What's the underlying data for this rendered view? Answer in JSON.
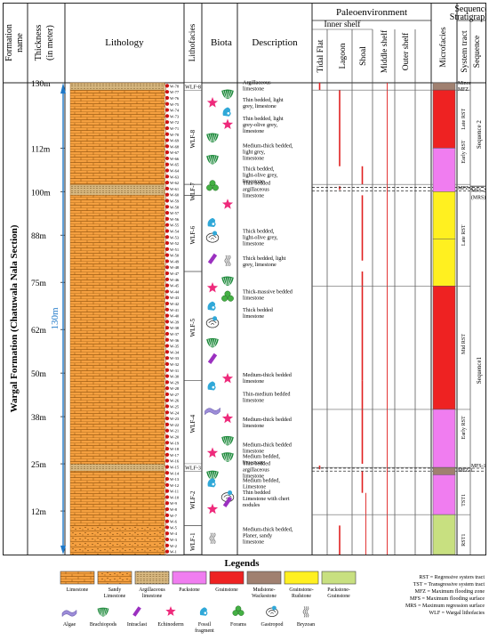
{
  "headers": {
    "formation": "Formation name",
    "thickness": "Thickness (in meter)",
    "lithology": "Lithology",
    "lithofacies": "Lithofacies",
    "biota": "Biota",
    "description": "Description",
    "paleoenvironment": "Paleoenvironment",
    "inner_shelf": "Inner shelf",
    "tidal_flat": "Tidal Flat",
    "lagoon": "Lagoon",
    "shoal": "Shoal",
    "middle_shelf": "Middle shelf",
    "outer_shelf": "Outer shelf",
    "microfacies": "Microfacies",
    "sequence_stratigraphy": "Sequence Stratigraphy",
    "system_tract": "System tract",
    "sequence": "Sequence"
  },
  "formation_name": "Wargal Formation (Chatuwala Nala Section)",
  "total_thickness": "130m",
  "thickness_scale": [
    {
      "label": "130m",
      "value": 130
    },
    {
      "label": "112m",
      "value": 112
    },
    {
      "label": "100m",
      "value": 100
    },
    {
      "label": "88m",
      "value": 88
    },
    {
      "label": "75m",
      "value": 75
    },
    {
      "label": "62m",
      "value": 62
    },
    {
      "label": "50m",
      "value": 50
    },
    {
      "label": "38m",
      "value": 38
    },
    {
      "label": "25m",
      "value": 25
    },
    {
      "label": "12m",
      "value": 12
    }
  ],
  "samples": [
    "W-78",
    "W-77",
    "W-76",
    "W-75",
    "W-74",
    "W-73",
    "W-72",
    "W-71",
    "W-70",
    "W-69",
    "W-68",
    "W-67",
    "W-66",
    "W-65",
    "W-64",
    "W-63",
    "W-62",
    "W-61",
    "W-60",
    "W-59",
    "W-58",
    "W-57",
    "W-56",
    "W-55",
    "W-54",
    "W-53",
    "W-52",
    "W-51",
    "W-50",
    "W-49",
    "W-48",
    "W-47",
    "W-46",
    "W-45",
    "W-44",
    "W-43",
    "W-42",
    "W-41",
    "W-40",
    "W-39",
    "W-38",
    "W-37",
    "W-36",
    "W-35",
    "W-34",
    "W-33",
    "W-32",
    "W-31",
    "W-30",
    "W-29",
    "W-28",
    "W-27",
    "W-26",
    "W-25",
    "W-24",
    "W-23",
    "W-22",
    "W-21",
    "W-20",
    "W-19",
    "W-18",
    "W-17",
    "W-16",
    "W-15",
    "W-14",
    "W-13",
    "W-12",
    "W-11",
    "W-10",
    "W-9",
    "W-8",
    "W-7",
    "W-6",
    "W-5",
    "W-4",
    "W-3",
    "W-2",
    "W-1"
  ],
  "lithology_units": [
    {
      "from": 0,
      "to": 8,
      "type": "sandy"
    },
    {
      "from": 8,
      "to": 23,
      "type": "limestone"
    },
    {
      "from": 23,
      "to": 25,
      "type": "argillaceous"
    },
    {
      "from": 25,
      "to": 99,
      "type": "limestone"
    },
    {
      "from": 99,
      "to": 102,
      "type": "argillaceous"
    },
    {
      "from": 102,
      "to": 128,
      "type": "limestone"
    },
    {
      "from": 128,
      "to": 130,
      "type": "argillaceous"
    }
  ],
  "lithofacies": [
    {
      "label": "WLF-8",
      "from": 128,
      "to": 130
    },
    {
      "label": "WLF-8",
      "from": 102,
      "to": 128
    },
    {
      "label": "WLF-7",
      "from": 99,
      "to": 102
    },
    {
      "label": "WLF-6",
      "from": 78,
      "to": 99
    },
    {
      "label": "WLF-5",
      "from": 48,
      "to": 78
    },
    {
      "label": "WLF-4",
      "from": 25,
      "to": 48
    },
    {
      "label": "WLF-3",
      "from": 23,
      "to": 25
    },
    {
      "label": "WLF-2",
      "from": 8,
      "to": 23
    },
    {
      "label": "WLF-1",
      "from": 0,
      "to": 8
    }
  ],
  "descriptions": [
    {
      "text": "Argillaceous limestone",
      "at": 129.3
    },
    {
      "text": "Thin bedded, light grey, limestone",
      "at": 124.5
    },
    {
      "text": "Thin bedded, light grey-olive grey, limestone",
      "at": 118.5
    },
    {
      "text": "Medium-thick bedded, light grey, limestone",
      "at": 111
    },
    {
      "text": "Thick bedded, light-olive grey, limestone",
      "at": 104.7
    },
    {
      "text": "Thin bedded argillaceous limestone",
      "at": 100.7
    },
    {
      "text": "Thick bedded, light-olive grey, limestone",
      "at": 87.5
    },
    {
      "text": "Thick bedded, light grey, limestone",
      "at": 80.8
    },
    {
      "text": "Thick-massive bedded limestone",
      "at": 71.7
    },
    {
      "text": "Thick bedded limestone",
      "at": 66.6
    },
    {
      "text": "Medium-thick bedded limestone",
      "at": 48.7
    },
    {
      "text": "Thin-medium bedded limestone",
      "at": 43.5
    },
    {
      "text": "Medium-thick bedded limestone",
      "at": 36.5
    },
    {
      "text": "Medium-thick bedded limestone",
      "at": 29.5
    },
    {
      "text": "Medium bedded, limestone",
      "at": 26.3
    },
    {
      "text": "Thin bedded argillaceous limestone",
      "at": 23.5
    },
    {
      "text": "Medium bedded, Limestone",
      "at": 19.7
    },
    {
      "text": "Thin bedded Limestone with chert nodules",
      "at": 15.5
    },
    {
      "text": "Medium-thick bedded, Planer, sandy limestone",
      "at": 5.3
    }
  ],
  "biota_icons": [
    {
      "icon": "echinoderm-icon",
      "at": 124.5,
      "col": 0
    },
    {
      "icon": "brachiopod-icon",
      "at": 127,
      "col": 1
    },
    {
      "icon": "fossil-fragment-icon",
      "at": 122,
      "col": 1
    },
    {
      "icon": "echinoderm-icon",
      "at": 118.5,
      "col": 1
    },
    {
      "icon": "brachiopod-icon",
      "at": 115,
      "col": 0
    },
    {
      "icon": "brachiopod-icon",
      "at": 109,
      "col": 0
    },
    {
      "icon": "foram-icon",
      "at": 101.5,
      "col": 0
    },
    {
      "icon": "echinoderm-icon",
      "at": 96.5,
      "col": 1
    },
    {
      "icon": "fossil-fragment-icon",
      "at": 91.5,
      "col": 0
    },
    {
      "icon": "gastropod-icon",
      "at": 87.5,
      "col": 0
    },
    {
      "icon": "intraclast-icon",
      "at": 81.5,
      "col": 0
    },
    {
      "icon": "bryozoan-icon",
      "at": 81,
      "col": 1
    },
    {
      "icon": "brachiopod-icon",
      "at": 75.5,
      "col": 1
    },
    {
      "icon": "echinoderm-icon",
      "at": 73.5,
      "col": 0
    },
    {
      "icon": "foram-icon",
      "at": 71,
      "col": 1
    },
    {
      "icon": "fossil-fragment-icon",
      "at": 68.5,
      "col": 0
    },
    {
      "icon": "gastropod-icon",
      "at": 64,
      "col": 0
    },
    {
      "icon": "brachiopod-icon",
      "at": 58.5,
      "col": 0
    },
    {
      "icon": "intraclast-icon",
      "at": 54,
      "col": 0
    },
    {
      "icon": "echinoderm-icon",
      "at": 48.5,
      "col": 1
    },
    {
      "icon": "fossil-fragment-icon",
      "at": 46.5,
      "col": 0
    },
    {
      "icon": "algae-icon",
      "at": 40,
      "col": 0
    },
    {
      "icon": "echinoderm-icon",
      "at": 37.5,
      "col": 1
    },
    {
      "icon": "brachiopod-icon",
      "at": 31.5,
      "col": 1
    },
    {
      "icon": "echinoderm-icon",
      "at": 28,
      "col": 0
    },
    {
      "icon": "brachiopod-icon",
      "at": 27,
      "col": 1
    },
    {
      "icon": "brachiopod-icon",
      "at": 22,
      "col": 0
    },
    {
      "icon": "fossil-fragment-icon",
      "at": 19.8,
      "col": 0
    },
    {
      "icon": "gastropod-icon",
      "at": 16,
      "col": 1
    },
    {
      "icon": "echinoderm-icon",
      "at": 12.5,
      "col": 0
    },
    {
      "icon": "intraclast-icon",
      "at": 14.5,
      "col": 1
    },
    {
      "icon": "bryozoan-icon",
      "at": 4.5,
      "col": 0
    }
  ],
  "environment_bars": [
    {
      "env": 1,
      "from": 128,
      "to": 130
    },
    {
      "env": 2,
      "from": 107,
      "to": 128
    },
    {
      "env": 3,
      "from": 102,
      "to": 107
    },
    {
      "env": 2,
      "from": 100.5,
      "to": 101.5
    },
    {
      "env": 3,
      "from": 81,
      "to": 99
    },
    {
      "env": 3,
      "from": 48,
      "to": 78
    },
    {
      "env": 3,
      "from": 25,
      "to": 48
    },
    {
      "env": 1,
      "from": 23.5,
      "to": 24.5
    },
    {
      "env": 3,
      "from": 17,
      "to": 23
    },
    {
      "env": 2,
      "from": 0,
      "to": 8
    }
  ],
  "environment_lines": [
    {
      "env": 3,
      "from": 0,
      "to": 17
    },
    {
      "env": 4,
      "from": 0,
      "to": 130
    }
  ],
  "microfacies": [
    {
      "from": 128,
      "to": 130,
      "type": "mudstone_wackestone"
    },
    {
      "from": 112,
      "to": 128,
      "type": "grainstone"
    },
    {
      "from": 100,
      "to": 112,
      "type": "packstone"
    },
    {
      "from": 87,
      "to": 100,
      "type": "grainstone_rudstone"
    },
    {
      "from": 74,
      "to": 87,
      "type": "grainstone_rudstone"
    },
    {
      "from": 40,
      "to": 74,
      "type": "grainstone"
    },
    {
      "from": 24,
      "to": 40,
      "type": "packstone"
    },
    {
      "from": 22,
      "to": 24,
      "type": "mudstone_wackestone"
    },
    {
      "from": 11,
      "to": 22,
      "type": "packstone"
    },
    {
      "from": 0,
      "to": 11,
      "type": "packstone_grainstone"
    }
  ],
  "system_tracts": [
    {
      "label": "Minor MFZ",
      "at": 129.2
    },
    {
      "label": "Late RST",
      "at": 120
    },
    {
      "label": "Early RST",
      "at": 111
    },
    {
      "label": "MFZ-2",
      "at": 101
    },
    {
      "label": "Late RST",
      "at": 88
    },
    {
      "label": "Mid RST",
      "at": 58
    },
    {
      "label": "Early RST",
      "at": 35
    },
    {
      "label": "MFZ-1",
      "at": 23.3
    },
    {
      "label": "TST1",
      "at": 15
    },
    {
      "label": "RST1",
      "at": 4
    }
  ],
  "tract_lines": [
    128,
    102,
    74,
    40,
    24,
    11
  ],
  "sequences": [
    {
      "label": "Sequence 2",
      "from": 101.5,
      "to": 130
    },
    {
      "label": "Sequence1",
      "from": 0,
      "to": 101.5
    }
  ],
  "sequence_boundary_labels": [
    {
      "label": "MFS-2",
      "at": 100.5
    },
    {
      "label": "(MRS)",
      "at": 98.5
    },
    {
      "label": "MFS-1",
      "at": 24.5
    }
  ],
  "legend": {
    "title": "Legends",
    "swatches": [
      {
        "key": "limestone",
        "label": "Limestone"
      },
      {
        "key": "sandy",
        "label": "Sandy Limestone"
      },
      {
        "key": "argillaceous",
        "label": "Argillaceous limestone"
      },
      {
        "key": "packstone",
        "label": "Packstone"
      },
      {
        "key": "grainstone",
        "label": "Grainstone"
      },
      {
        "key": "mudstone_wackestone",
        "label": "Mudstone-Wackestone"
      },
      {
        "key": "grainstone_rudstone",
        "label": "Grainstone-Rudstone"
      },
      {
        "key": "packstone_grainstone",
        "label": "Packstone-Grainstone"
      }
    ],
    "biota": [
      {
        "icon": "algae-icon",
        "label": "Algae"
      },
      {
        "icon": "brachiopod-icon",
        "label": "Brachiopods"
      },
      {
        "icon": "intraclast-icon",
        "label": "Intraclast"
      },
      {
        "icon": "echinoderm-icon",
        "label": "Echinoderm"
      },
      {
        "icon": "fossil-fragment-icon",
        "label": "Fossil fragment"
      },
      {
        "icon": "foram-icon",
        "label": "Forams"
      },
      {
        "icon": "gastropod-icon",
        "label": "Gastropod"
      },
      {
        "icon": "bryozoan-icon",
        "label": "Bryzoan"
      }
    ],
    "abbreviations": [
      "RST = Regressive systers tract",
      "TST = Transgressive system tract",
      "MFZ = Maximum flooding zone",
      "MFS = Maximum flooding surface",
      "MRS = Maximum regression surface",
      "WLF = Wargal lithofacies"
    ]
  },
  "colors": {
    "limestone": "#F5A040",
    "limestone_line": "#9a5a12",
    "sandy": "#F5A040",
    "argillaceous": "#D8B880",
    "packstone": "#F07DF0",
    "grainstone": "#EE2222",
    "mudstone_wackestone": "#A08070",
    "grainstone_rudstone": "#FFF020",
    "packstone_grainstone": "#C8E080",
    "scale_blue": "#1E78C8",
    "sample_red": "#CC1111",
    "env_red": "#E02020",
    "echinoderm": "#EE2A7B",
    "brachiopod": "#1E8A3C",
    "foram": "#44B044",
    "intraclast": "#9B30C0",
    "algae": "#9C8CD8",
    "fossil_fragment": "#30A8D8"
  }
}
